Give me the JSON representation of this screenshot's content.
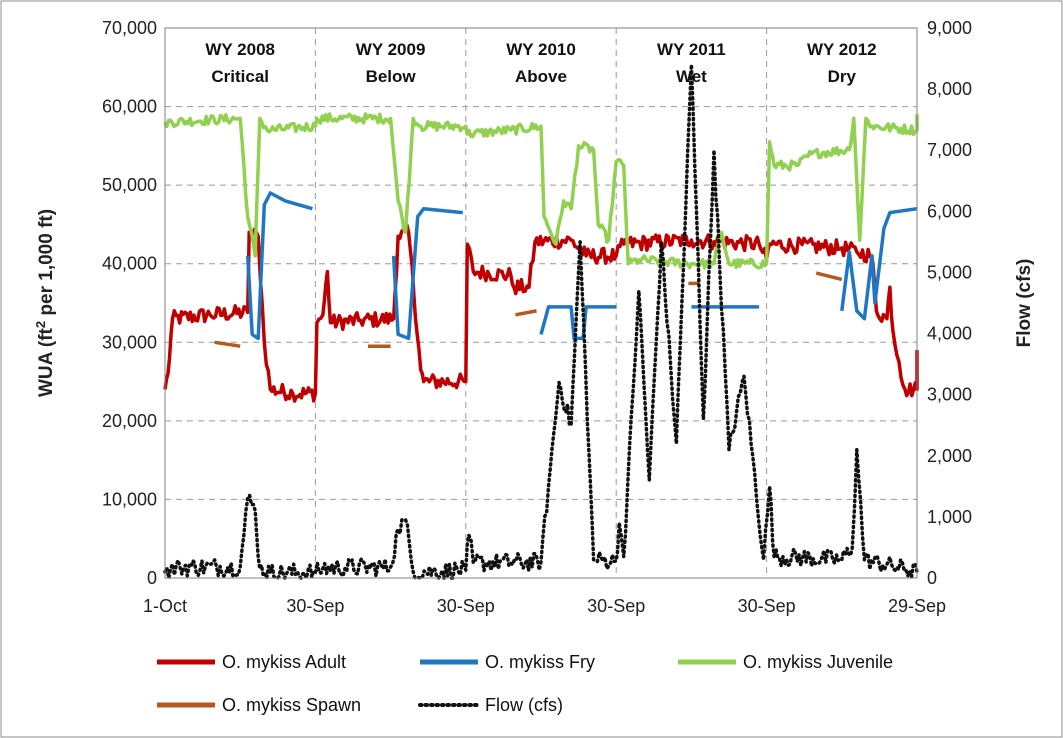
{
  "chart_data": {
    "type": "line",
    "y_left_label": "WUA (ft² per 1,000 ft)",
    "y_left_label_main": "WUA (ft",
    "y_left_label_sup": "2",
    "y_left_label_rest": " per 1,000 ft)",
    "y_right_label": "Flow (cfs)",
    "ylim_left": [
      0,
      70000
    ],
    "ylim_right": [
      0,
      9000
    ],
    "xlim": [
      0,
      5
    ],
    "y_left_ticks": [
      "0",
      "10,000",
      "20,000",
      "30,000",
      "40,000",
      "50,000",
      "60,000",
      "70,000"
    ],
    "y_right_ticks": [
      "0",
      "1,000",
      "2,000",
      "3,000",
      "4,000",
      "5,000",
      "6,000",
      "7,000",
      "8,000",
      "9,000"
    ],
    "x_ticks": [
      "1-Oct",
      "30-Sep",
      "30-Sep",
      "30-Sep",
      "30-Sep",
      "29-Sep"
    ],
    "grid": "dashed",
    "legend_position": "bottom",
    "water_years": [
      {
        "line1": "WY 2008",
        "line2": "Critical"
      },
      {
        "line1": "WY 2009",
        "line2": "Below"
      },
      {
        "line1": "WY 2010",
        "line2": "Above"
      },
      {
        "line1": "WY 2011",
        "line2": "Wet"
      },
      {
        "line1": "WY 2012",
        "line2": "Dry"
      }
    ],
    "series": [
      {
        "name": "O. mykiss Adult",
        "axis": "left",
        "color": "#c00000",
        "style": "solid",
        "points": [
          [
            0.0,
            24000
          ],
          [
            0.02,
            26000
          ],
          [
            0.05,
            33000
          ],
          [
            0.3,
            33500
          ],
          [
            0.55,
            33800
          ],
          [
            0.56,
            44000
          ],
          [
            0.62,
            43500
          ],
          [
            0.66,
            30000
          ],
          [
            0.7,
            24000
          ],
          [
            0.85,
            23500
          ],
          [
            1.0,
            23500
          ],
          [
            1.01,
            32500
          ],
          [
            1.05,
            33500
          ],
          [
            1.08,
            39000
          ],
          [
            1.1,
            32500
          ],
          [
            1.3,
            32800
          ],
          [
            1.52,
            33000
          ],
          [
            1.55,
            43500
          ],
          [
            1.62,
            44000
          ],
          [
            1.7,
            26500
          ],
          [
            1.72,
            25000
          ],
          [
            2.0,
            25000
          ],
          [
            2.01,
            42500
          ],
          [
            2.05,
            39000
          ],
          [
            2.3,
            38500
          ],
          [
            2.32,
            37000
          ],
          [
            2.42,
            37000
          ],
          [
            2.46,
            42800
          ],
          [
            2.7,
            43000
          ],
          [
            2.8,
            41000
          ],
          [
            3.0,
            41000
          ],
          [
            3.05,
            42500
          ],
          [
            3.5,
            43000
          ],
          [
            3.65,
            42800
          ],
          [
            3.95,
            42500
          ],
          [
            4.0,
            40500
          ],
          [
            4.02,
            42500
          ],
          [
            4.5,
            42000
          ],
          [
            4.6,
            41500
          ],
          [
            4.7,
            41000
          ],
          [
            4.73,
            34000
          ],
          [
            4.8,
            33000
          ],
          [
            4.82,
            37000
          ],
          [
            4.84,
            31500
          ],
          [
            4.88,
            27500
          ],
          [
            4.92,
            24000
          ],
          [
            5.0,
            24000
          ],
          [
            5.0,
            29000
          ]
        ],
        "noise": 2000
      },
      {
        "name": "O. mykiss Fry",
        "axis": "left",
        "color": "#1f77c4",
        "style": "solid",
        "segments": [
          [
            [
              0.55,
              41000
            ],
            [
              0.58,
              31000
            ],
            [
              0.62,
              30500
            ],
            [
              0.66,
              47500
            ],
            [
              0.7,
              49000
            ],
            [
              0.8,
              48000
            ],
            [
              0.98,
              47000
            ]
          ],
          [
            [
              1.52,
              41000
            ],
            [
              1.55,
              31000
            ],
            [
              1.62,
              30500
            ],
            [
              1.68,
              46000
            ],
            [
              1.72,
              47000
            ],
            [
              1.98,
              46500
            ]
          ],
          [
            [
              2.5,
              31000
            ],
            [
              2.55,
              34500
            ],
            [
              2.7,
              34500
            ],
            [
              2.72,
              30500
            ],
            [
              2.78,
              30500
            ],
            [
              2.8,
              34500
            ],
            [
              3.0,
              34500
            ]
          ],
          [
            [
              3.5,
              34500
            ],
            [
              3.95,
              34500
            ]
          ],
          [
            [
              4.5,
              34000
            ],
            [
              4.55,
              41500
            ],
            [
              4.6,
              34000
            ],
            [
              4.65,
              33000
            ],
            [
              4.7,
              41000
            ],
            [
              4.72,
              35000
            ],
            [
              4.78,
              44500
            ],
            [
              4.82,
              46500
            ],
            [
              5.0,
              47000
            ]
          ]
        ]
      },
      {
        "name": "O. mykiss Juvenile",
        "axis": "left",
        "color": "#92d050",
        "style": "solid",
        "points": [
          [
            0.0,
            58000
          ],
          [
            0.5,
            58500
          ],
          [
            0.55,
            46000
          ],
          [
            0.6,
            41000
          ],
          [
            0.63,
            58500
          ],
          [
            0.68,
            57000
          ],
          [
            1.0,
            57500
          ],
          [
            1.01,
            58500
          ],
          [
            1.5,
            58500
          ],
          [
            1.55,
            48000
          ],
          [
            1.6,
            44000
          ],
          [
            1.65,
            58500
          ],
          [
            1.7,
            57500
          ],
          [
            2.0,
            57500
          ],
          [
            2.01,
            56500
          ],
          [
            2.3,
            57000
          ],
          [
            2.5,
            57500
          ],
          [
            2.52,
            46000
          ],
          [
            2.6,
            42500
          ],
          [
            2.65,
            48000
          ],
          [
            2.7,
            47000
          ],
          [
            2.75,
            55000
          ],
          [
            2.85,
            54500
          ],
          [
            2.88,
            45000
          ],
          [
            2.95,
            43000
          ],
          [
            3.0,
            53000
          ],
          [
            3.05,
            52500
          ],
          [
            3.08,
            40000
          ],
          [
            3.15,
            40500
          ],
          [
            3.5,
            40000
          ],
          [
            3.65,
            40000
          ],
          [
            3.7,
            44000
          ],
          [
            3.75,
            40000
          ],
          [
            4.0,
            40000
          ],
          [
            4.02,
            55500
          ],
          [
            4.05,
            52500
          ],
          [
            4.2,
            52500
          ],
          [
            4.3,
            54000
          ],
          [
            4.55,
            54500
          ],
          [
            4.58,
            58500
          ],
          [
            4.62,
            43000
          ],
          [
            4.66,
            58500
          ],
          [
            4.7,
            57500
          ],
          [
            5.0,
            57000
          ],
          [
            5.0,
            59000
          ]
        ],
        "noise": 1200
      },
      {
        "name": "O. mykiss Spawn",
        "axis": "left",
        "color": "#b35a1f",
        "style": "solid",
        "segments": [
          [
            [
              0.33,
              30000
            ],
            [
              0.5,
              29500
            ]
          ],
          [
            [
              1.35,
              29500
            ],
            [
              1.5,
              29500
            ]
          ],
          [
            [
              2.33,
              33500
            ],
            [
              2.47,
              34000
            ]
          ],
          [
            [
              3.48,
              37500
            ],
            [
              3.55,
              37500
            ]
          ],
          [
            [
              4.33,
              38800
            ],
            [
              4.5,
              38000
            ]
          ]
        ]
      },
      {
        "name": "Flow (cfs)",
        "axis": "right",
        "color": "#111111",
        "style": "dotted",
        "points": [
          [
            0.0,
            100
          ],
          [
            0.1,
            180
          ],
          [
            0.5,
            180
          ],
          [
            0.55,
            1300
          ],
          [
            0.6,
            1100
          ],
          [
            0.63,
            150
          ],
          [
            0.7,
            90
          ],
          [
            1.0,
            90
          ],
          [
            1.05,
            160
          ],
          [
            1.5,
            180
          ],
          [
            1.55,
            800
          ],
          [
            1.6,
            950
          ],
          [
            1.65,
            100
          ],
          [
            2.0,
            130
          ],
          [
            2.02,
            700
          ],
          [
            2.05,
            250
          ],
          [
            2.5,
            260
          ],
          [
            2.55,
            1500
          ],
          [
            2.62,
            3200
          ],
          [
            2.7,
            2500
          ],
          [
            2.76,
            5500
          ],
          [
            2.82,
            2000
          ],
          [
            2.85,
            300
          ],
          [
            3.0,
            280
          ],
          [
            3.02,
            900
          ],
          [
            3.05,
            350
          ],
          [
            3.15,
            4700
          ],
          [
            3.22,
            1600
          ],
          [
            3.3,
            5500
          ],
          [
            3.4,
            2200
          ],
          [
            3.5,
            8400
          ],
          [
            3.58,
            2600
          ],
          [
            3.65,
            7000
          ],
          [
            3.75,
            2100
          ],
          [
            3.85,
            3300
          ],
          [
            3.98,
            300
          ],
          [
            4.02,
            1500
          ],
          [
            4.05,
            350
          ],
          [
            4.5,
            300
          ],
          [
            4.57,
            500
          ],
          [
            4.6,
            2100
          ],
          [
            4.65,
            300
          ],
          [
            5.0,
            100
          ]
        ],
        "noise": 300
      }
    ]
  }
}
